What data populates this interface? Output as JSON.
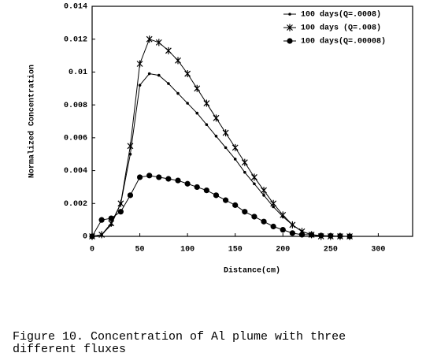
{
  "chart_data": {
    "type": "line",
    "x_label": "Distance(cm)",
    "y_label": "Normalized Concentration",
    "x": [
      0,
      10,
      20,
      30,
      40,
      50,
      60,
      70,
      80,
      90,
      100,
      110,
      120,
      130,
      140,
      150,
      160,
      170,
      180,
      190,
      200,
      210,
      220,
      230,
      240,
      250,
      260,
      270
    ],
    "series": [
      {
        "name": "100 days(Q=.0008)",
        "color": "#000000",
        "marker": "dot",
        "values": [
          0,
          0.0001,
          0.0007,
          0.002,
          0.005,
          0.0092,
          0.0099,
          0.0098,
          0.0093,
          0.0087,
          0.0081,
          0.0075,
          0.0068,
          0.0061,
          0.0054,
          0.0047,
          0.0039,
          0.0032,
          0.0025,
          0.0018,
          0.0012,
          0.0007,
          0.0003,
          0.0001,
          0,
          0,
          0,
          0
        ]
      },
      {
        "name": "100 days (Q=.008)",
        "color": "#000000",
        "marker": "star",
        "values": [
          0,
          0.0001,
          0.0008,
          0.002,
          0.0055,
          0.0105,
          0.012,
          0.0118,
          0.0113,
          0.0107,
          0.0099,
          0.009,
          0.0081,
          0.0072,
          0.0063,
          0.0054,
          0.0045,
          0.0036,
          0.0028,
          0.002,
          0.0013,
          0.0007,
          0.0003,
          0.0001,
          0,
          0,
          0,
          0
        ]
      },
      {
        "name": "100 days(Q=.00008)",
        "color": "#000000",
        "marker": "circle",
        "values": [
          0,
          0.001,
          0.0011,
          0.0015,
          0.0025,
          0.0036,
          0.0037,
          0.0036,
          0.0035,
          0.0034,
          0.0032,
          0.003,
          0.0028,
          0.0025,
          0.0022,
          0.0019,
          0.0015,
          0.0012,
          0.0009,
          0.0006,
          0.0004,
          0.0002,
          0.0001,
          0.0001,
          5e-05,
          3e-05,
          2e-05,
          0
        ]
      }
    ],
    "xlim": [
      0,
      336
    ],
    "xticks": [
      0,
      50,
      100,
      150,
      200,
      250,
      300
    ],
    "ylim": [
      0,
      0.014
    ],
    "yticks": [
      0,
      0.002,
      0.004,
      0.006,
      0.008,
      0.01,
      0.012,
      0.014
    ],
    "legend": "upper right",
    "caption": "Figure 10. Concentration of Al plume with three different fluxes"
  }
}
